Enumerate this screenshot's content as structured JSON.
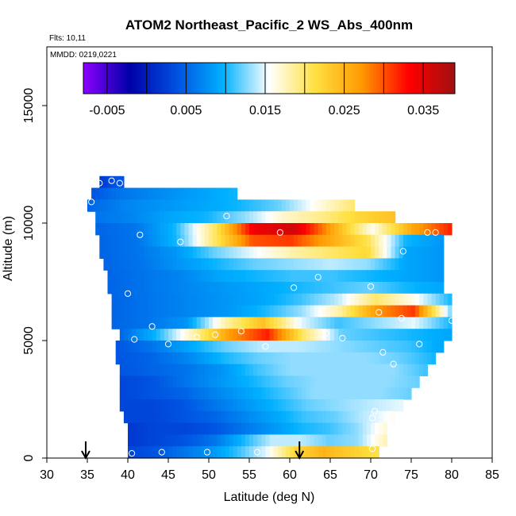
{
  "chart_data": {
    "type": "heatmap",
    "title": "ATOM2 Northeast_Pacific_2 WS_Abs_400nm",
    "flights_label": "Flts: 10,11",
    "mmdd_label": "MMDD: 0219,0221",
    "xlabel": "Latitude (deg N)",
    "ylabel": "Altitude (m)",
    "xlim": [
      30,
      85
    ],
    "ylim": [
      0,
      17500
    ],
    "x_ticks": [
      "30",
      "35",
      "40",
      "45",
      "50",
      "55",
      "60",
      "65",
      "70",
      "75",
      "80",
      "85"
    ],
    "y_ticks": [
      "0",
      "5000",
      "10000",
      "15000"
    ],
    "colorbar": {
      "range": [
        -0.008,
        0.039
      ],
      "tick_labels": [
        "-0.005",
        "0.005",
        "0.015",
        "0.025",
        "0.035"
      ],
      "tick_values": [
        -0.005,
        0.005,
        0.015,
        0.025,
        0.035
      ],
      "colors": [
        "#8b00ff",
        "#0000a8",
        "#0050e0",
        "#00b0ff",
        "#ffffff",
        "#ffe040",
        "#ff9900",
        "#ff0000",
        "#a01010"
      ]
    },
    "rows": [
      {
        "alt": 11750,
        "lat_start": 36.5,
        "lat_end": 39.5,
        "values": [
          0.002,
          0.003,
          0.004,
          0.004
        ]
      },
      {
        "alt": 11250,
        "lat_start": 35.5,
        "lat_end": 53.5,
        "values": [
          0.004,
          0.006,
          0.007,
          0.008,
          0.009,
          0.01
        ]
      },
      {
        "alt": 10750,
        "lat_start": 35.0,
        "lat_end": 68.0,
        "values": [
          0.005,
          0.007,
          0.008,
          0.009,
          0.01,
          0.012,
          0.016,
          0.02
        ]
      },
      {
        "alt": 10250,
        "lat_start": 36.0,
        "lat_end": 73.0,
        "values": [
          0.006,
          0.007,
          0.009,
          0.01,
          0.013,
          0.017,
          0.019,
          0.022,
          0.024
        ]
      },
      {
        "alt": 9750,
        "lat_start": 36.0,
        "lat_end": 80.0,
        "values": [
          0.005,
          0.006,
          0.01,
          0.02,
          0.034,
          0.036,
          0.026,
          0.016,
          0.026,
          0.032
        ]
      },
      {
        "alt": 9250,
        "lat_start": 36.5,
        "lat_end": 79.0,
        "values": [
          0.005,
          0.006,
          0.01,
          0.02,
          0.03,
          0.031,
          0.026,
          0.021,
          0.01,
          0.008
        ]
      },
      {
        "alt": 8750,
        "lat_start": 36.5,
        "lat_end": 79.0,
        "values": [
          0.005,
          0.006,
          0.008,
          0.012,
          0.015,
          0.018,
          0.02,
          0.022,
          0.009,
          0.008
        ]
      },
      {
        "alt": 8250,
        "lat_start": 37.0,
        "lat_end": 79.0,
        "values": [
          0.005,
          0.006,
          0.008,
          0.01,
          0.012,
          0.013,
          0.014,
          0.013,
          0.009,
          0.008
        ]
      },
      {
        "alt": 7750,
        "lat_start": 37.5,
        "lat_end": 79.0,
        "values": [
          0.005,
          0.006,
          0.007,
          0.009,
          0.01,
          0.011,
          0.011,
          0.01,
          0.009,
          0.008
        ]
      },
      {
        "alt": 7250,
        "lat_start": 37.5,
        "lat_end": 79.0,
        "values": [
          0.005,
          0.006,
          0.007,
          0.008,
          0.009,
          0.01,
          0.011,
          0.012,
          0.01,
          0.009
        ]
      },
      {
        "alt": 6750,
        "lat_start": 38.0,
        "lat_end": 80.0,
        "values": [
          0.005,
          0.006,
          0.007,
          0.008,
          0.009,
          0.011,
          0.014,
          0.02,
          0.016,
          0.01
        ]
      },
      {
        "alt": 6250,
        "lat_start": 38.0,
        "lat_end": 80.0,
        "values": [
          0.005,
          0.006,
          0.007,
          0.008,
          0.01,
          0.013,
          0.018,
          0.027,
          0.031,
          0.012
        ]
      },
      {
        "alt": 5750,
        "lat_start": 38.0,
        "lat_end": 80.0,
        "values": [
          0.005,
          0.006,
          0.008,
          0.018,
          0.024,
          0.015,
          0.011,
          0.013,
          0.015,
          0.01
        ]
      },
      {
        "alt": 5250,
        "lat_start": 39.0,
        "lat_end": 80.0,
        "values": [
          0.005,
          0.01,
          0.018,
          0.027,
          0.032,
          0.02,
          0.012,
          0.011,
          0.01,
          0.009
        ]
      },
      {
        "alt": 4750,
        "lat_start": 38.5,
        "lat_end": 79.0,
        "values": [
          0.004,
          0.006,
          0.009,
          0.012,
          0.014,
          0.014,
          0.013,
          0.012,
          0.011,
          0.009
        ]
      },
      {
        "alt": 4250,
        "lat_start": 38.5,
        "lat_end": 78.0,
        "values": [
          0.004,
          0.005,
          0.007,
          0.01,
          0.012,
          0.013,
          0.013,
          0.013,
          0.012,
          0.01
        ]
      },
      {
        "alt": 3750,
        "lat_start": 39.0,
        "lat_end": 77.0,
        "values": [
          0.004,
          0.005,
          0.006,
          0.008,
          0.011,
          0.013,
          0.013,
          0.013,
          0.013,
          0.011
        ]
      },
      {
        "alt": 3250,
        "lat_start": 39.0,
        "lat_end": 76.0,
        "values": [
          0.003,
          0.004,
          0.006,
          0.008,
          0.01,
          0.012,
          0.013,
          0.013,
          0.013,
          0.012
        ]
      },
      {
        "alt": 2750,
        "lat_start": 39.0,
        "lat_end": 75.0,
        "values": [
          0.003,
          0.004,
          0.005,
          0.007,
          0.009,
          0.011,
          0.013,
          0.013,
          0.013,
          0.012
        ]
      },
      {
        "alt": 2250,
        "lat_start": 39.0,
        "lat_end": 74.0,
        "values": [
          0.003,
          0.003,
          0.004,
          0.006,
          0.008,
          0.01,
          0.012,
          0.013,
          0.014,
          0.015
        ]
      },
      {
        "alt": 1750,
        "lat_start": 39.5,
        "lat_end": 73.0,
        "values": [
          0.003,
          0.003,
          0.004,
          0.005,
          0.007,
          0.009,
          0.011,
          0.012,
          0.014,
          0.016
        ]
      },
      {
        "alt": 1250,
        "lat_start": 40.0,
        "lat_end": 72.0,
        "values": [
          0.002,
          0.003,
          0.003,
          0.004,
          0.006,
          0.008,
          0.01,
          0.011,
          0.013,
          0.017
        ]
      },
      {
        "alt": 750,
        "lat_start": 40.0,
        "lat_end": 72.0,
        "values": [
          0.002,
          0.003,
          0.004,
          0.006,
          0.01,
          0.014,
          0.014,
          0.012,
          0.013,
          0.018
        ]
      },
      {
        "alt": 250,
        "lat_start": 40.0,
        "lat_end": 71.0,
        "values": [
          0.003,
          0.004,
          0.006,
          0.008,
          0.011,
          0.015,
          0.022,
          0.025,
          0.023,
          0.021
        ]
      }
    ],
    "sample_points": [
      {
        "lat": 36.5,
        "alt": 11700
      },
      {
        "lat": 38.0,
        "lat2": 0,
        "alt": 11800
      },
      {
        "lat": 39.0,
        "alt": 11700
      },
      {
        "lat": 35.5,
        "alt": 10900
      },
      {
        "lat": 52.2,
        "alt": 10300
      },
      {
        "lat": 41.5,
        "alt": 9500
      },
      {
        "lat": 46.5,
        "alt": 9200
      },
      {
        "lat": 58.8,
        "alt": 9600
      },
      {
        "lat": 77.0,
        "alt": 9600
      },
      {
        "lat": 78.0,
        "alt": 9600
      },
      {
        "lat": 74.0,
        "alt": 8800
      },
      {
        "lat": 63.5,
        "alt": 7700
      },
      {
        "lat": 60.5,
        "alt": 7250
      },
      {
        "lat": 70.0,
        "alt": 7300
      },
      {
        "lat": 40.0,
        "alt": 7000
      },
      {
        "lat": 71.0,
        "alt": 6200
      },
      {
        "lat": 73.8,
        "alt": 5950
      },
      {
        "lat": 80.0,
        "alt": 5850
      },
      {
        "lat": 43.0,
        "alt": 5600
      },
      {
        "lat": 54.0,
        "alt": 5400
      },
      {
        "lat": 48.5,
        "alt": 5150
      },
      {
        "lat": 50.8,
        "alt": 5250
      },
      {
        "lat": 64.5,
        "alt": 5300
      },
      {
        "lat": 66.5,
        "alt": 5100
      },
      {
        "lat": 40.8,
        "alt": 5050
      },
      {
        "lat": 45.0,
        "alt": 4850
      },
      {
        "lat": 57.0,
        "alt": 4750
      },
      {
        "lat": 76.0,
        "alt": 4850
      },
      {
        "lat": 71.5,
        "alt": 4500
      },
      {
        "lat": 72.8,
        "alt": 4000
      },
      {
        "lat": 70.5,
        "alt": 2000
      },
      {
        "lat": 70.2,
        "alt": 1700
      },
      {
        "lat": 44.2,
        "alt": 250
      },
      {
        "lat": 40.5,
        "alt": 200
      },
      {
        "lat": 49.8,
        "alt": 250
      },
      {
        "lat": 56.0,
        "alt": 250
      },
      {
        "lat": 70.2,
        "alt": 400
      }
    ],
    "arrow_markers": [
      34.8,
      61.2
    ]
  }
}
